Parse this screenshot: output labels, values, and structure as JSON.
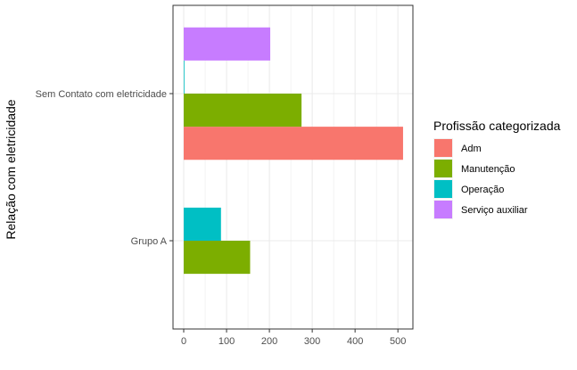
{
  "chart_data": {
    "type": "bar",
    "orientation": "horizontal",
    "grouped": true,
    "categories": [
      "Grupo A",
      "Sem Contato com eletricidade"
    ],
    "ylabel": "Relação com eletricidade",
    "xlabel": "",
    "xlim": [
      -25,
      535
    ],
    "xticks": [
      0,
      100,
      200,
      300,
      400,
      500
    ],
    "grid": true,
    "legend": {
      "title": "Profissão categorizada",
      "position": "right"
    },
    "series": [
      {
        "name": "Adm",
        "color": "#F8766D",
        "values": [
          0,
          512
        ]
      },
      {
        "name": "Manutenção",
        "color": "#7CAE00",
        "values": [
          155,
          275
        ]
      },
      {
        "name": "Operação",
        "color": "#00BFC4",
        "values": [
          87,
          1
        ]
      },
      {
        "name": "Serviço auxiliar",
        "color": "#C77CFF",
        "values": [
          0,
          202
        ]
      }
    ]
  }
}
